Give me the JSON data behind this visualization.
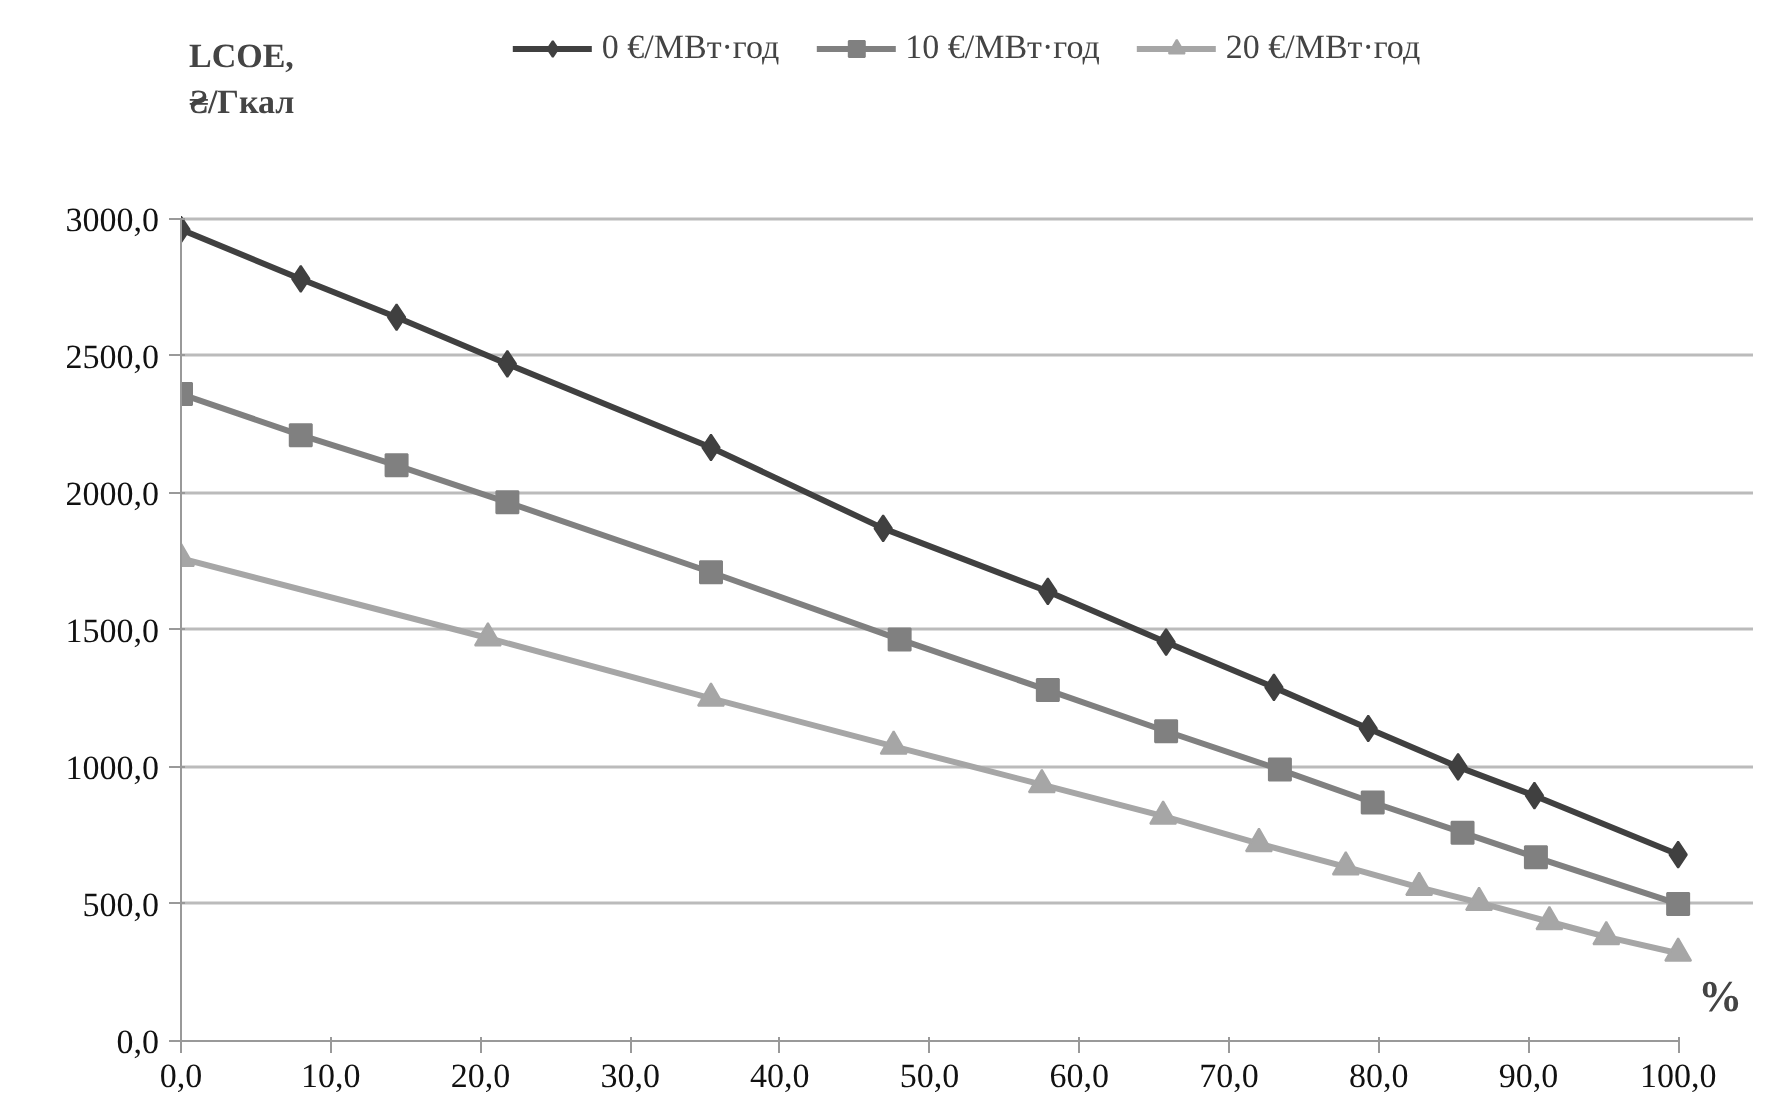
{
  "chart_data": {
    "type": "line",
    "ylabel": "LCOE,\n₴/Гкал",
    "xlabel": "%",
    "xlim": [
      0,
      100
    ],
    "ylim": [
      0,
      3000
    ],
    "xticks": [
      {
        "value": 0,
        "label": "0,0"
      },
      {
        "value": 10,
        "label": "10,0"
      },
      {
        "value": 20,
        "label": "20,0"
      },
      {
        "value": 30,
        "label": "30,0"
      },
      {
        "value": 40,
        "label": "40,0"
      },
      {
        "value": 50,
        "label": "50,0"
      },
      {
        "value": 60,
        "label": "60,0"
      },
      {
        "value": 70,
        "label": "70,0"
      },
      {
        "value": 80,
        "label": "80,0"
      },
      {
        "value": 90,
        "label": "90,0"
      },
      {
        "value": 100,
        "label": "100,0"
      }
    ],
    "yticks": [
      {
        "value": 0,
        "label": "0,0"
      },
      {
        "value": 500,
        "label": "500,0"
      },
      {
        "value": 1000,
        "label": "1000,0"
      },
      {
        "value": 1500,
        "label": "1500,0"
      },
      {
        "value": 2000,
        "label": "2000,0"
      },
      {
        "value": 2500,
        "label": "2500,0"
      },
      {
        "value": 3000,
        "label": "3000,0"
      }
    ],
    "grid": "y",
    "legend": "top",
    "line_style": "solid",
    "series": [
      {
        "name": "0 €/МВт·год",
        "color": "#404040",
        "marker": "diamond",
        "x": [
          0,
          8.0,
          14.4,
          21.8,
          35.4,
          46.9,
          57.9,
          65.8,
          73.0,
          79.3,
          85.3,
          90.4,
          100
        ],
        "values": [
          2960,
          2780,
          2640,
          2470,
          2165,
          1870,
          1640,
          1455,
          1290,
          1140,
          1000,
          895,
          680
        ]
      },
      {
        "name": "10 €/МВт·год",
        "color": "#808080",
        "marker": "square",
        "x": [
          0,
          8.0,
          14.4,
          21.8,
          35.4,
          48.0,
          57.9,
          65.8,
          73.4,
          79.6,
          85.6,
          90.5,
          100
        ],
        "values": [
          2360,
          2210,
          2100,
          1965,
          1710,
          1465,
          1280,
          1130,
          990,
          870,
          760,
          670,
          500
        ]
      },
      {
        "name": "20 €/МВт·год",
        "color": "#a6a6a6",
        "marker": "triangle",
        "x": [
          0,
          20.5,
          35.4,
          47.6,
          57.5,
          65.6,
          72.0,
          77.8,
          82.7,
          86.7,
          91.4,
          95.2,
          100
        ],
        "values": [
          1760,
          1470,
          1250,
          1075,
          935,
          820,
          720,
          635,
          560,
          505,
          435,
          380,
          320
        ]
      }
    ]
  }
}
